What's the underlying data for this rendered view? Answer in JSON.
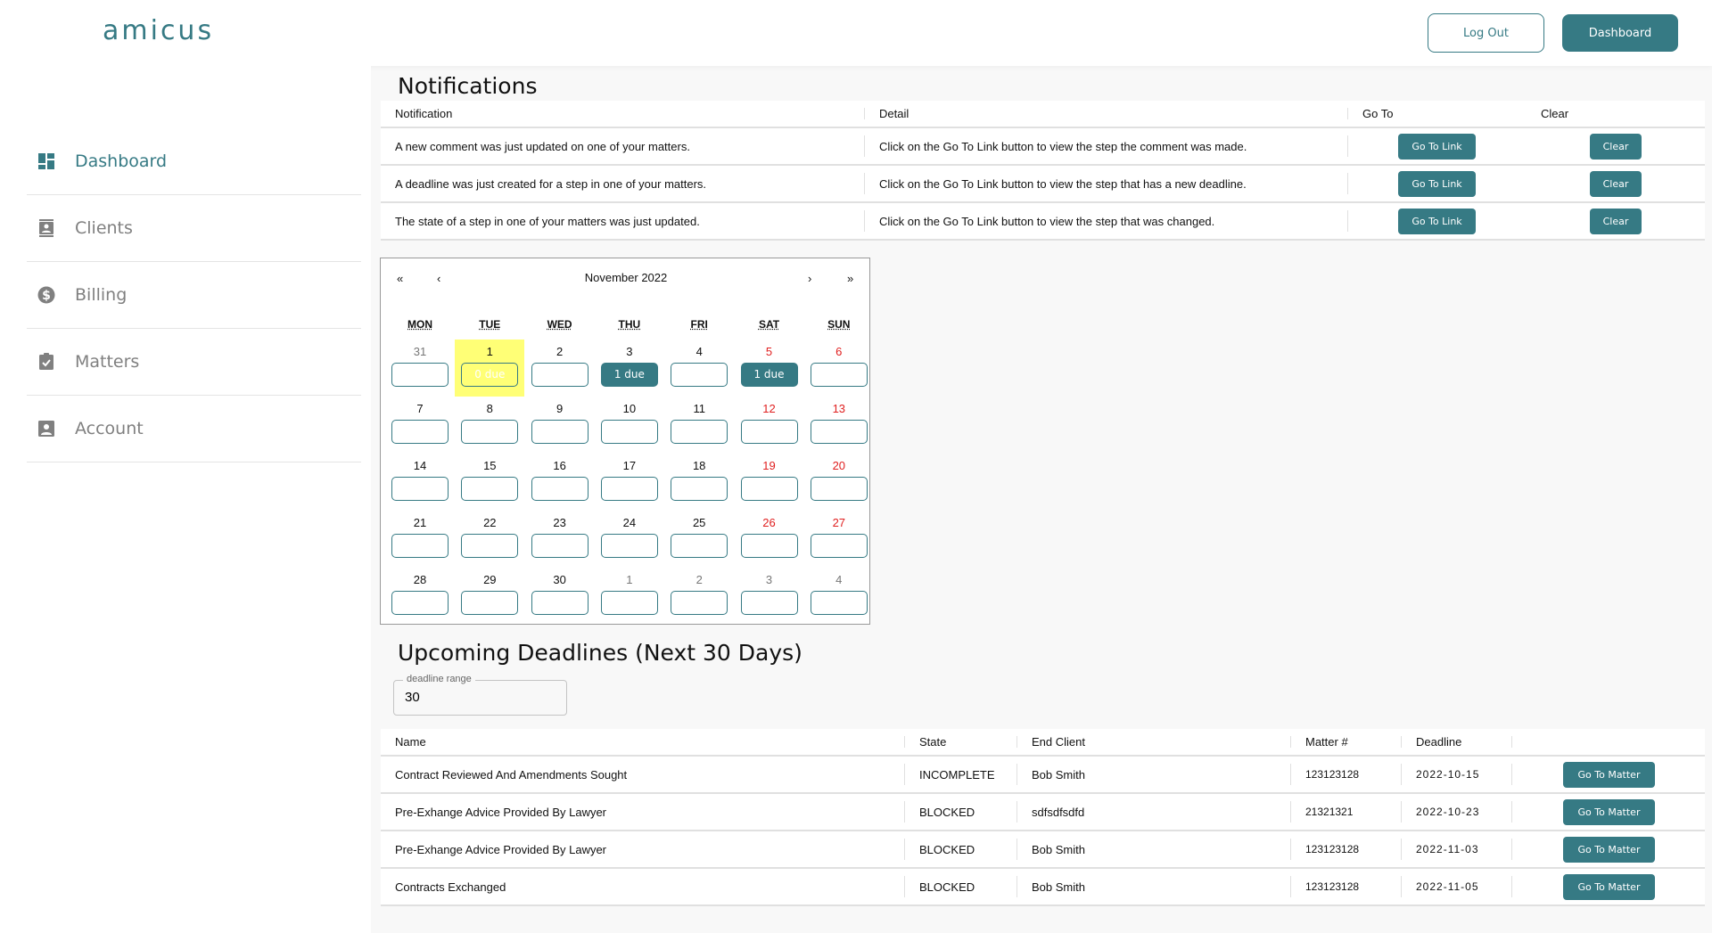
{
  "brand": "amicus",
  "header": {
    "logout": "Log Out",
    "dashboard": "Dashboard"
  },
  "colors": {
    "accent": "#367a84",
    "today": "#ffff76",
    "weekend": "#e02020"
  },
  "sidebar": {
    "items": [
      {
        "label": "Dashboard",
        "icon": "dashboard-icon",
        "active": true
      },
      {
        "label": "Clients",
        "icon": "contacts-icon"
      },
      {
        "label": "Billing",
        "icon": "dollar-icon"
      },
      {
        "label": "Matters",
        "icon": "clipboard-check-icon"
      },
      {
        "label": "Account",
        "icon": "account-box-icon"
      }
    ]
  },
  "notifications": {
    "title": "Notifications",
    "columns": [
      "Notification",
      "Detail",
      "Go To",
      "Clear"
    ],
    "rows": [
      {
        "notification": "A new comment was just updated on one of your matters.",
        "detail": "Click on the Go To Link button to view the step the comment was made.",
        "goto": "Go To Link",
        "clear": "Clear"
      },
      {
        "notification": "A deadline was just created for a step in one of your matters.",
        "detail": "Click on the Go To Link button to view the step that has a new deadline.",
        "goto": "Go To Link",
        "clear": "Clear"
      },
      {
        "notification": "The state of a step in one of your matters was just updated.",
        "detail": "Click on the Go To Link button to view the step that was changed.",
        "goto": "Go To Link",
        "clear": "Clear"
      }
    ]
  },
  "calendar": {
    "title": "November 2022",
    "nav": [
      "«",
      "‹",
      "›",
      "»"
    ],
    "weekdays": [
      "MON",
      "TUE",
      "WED",
      "THU",
      "FRI",
      "SAT",
      "SUN"
    ],
    "weeks": [
      [
        {
          "d": "31",
          "other": true
        },
        {
          "d": "1",
          "today": true,
          "due": "0 due"
        },
        {
          "d": "2"
        },
        {
          "d": "3",
          "due": "1 due",
          "has": true
        },
        {
          "d": "4"
        },
        {
          "d": "5",
          "we": true,
          "due": "1 due",
          "has": true
        },
        {
          "d": "6",
          "we": true
        }
      ],
      [
        {
          "d": "7"
        },
        {
          "d": "8"
        },
        {
          "d": "9"
        },
        {
          "d": "10"
        },
        {
          "d": "11"
        },
        {
          "d": "12",
          "we": true
        },
        {
          "d": "13",
          "we": true
        }
      ],
      [
        {
          "d": "14"
        },
        {
          "d": "15"
        },
        {
          "d": "16"
        },
        {
          "d": "17"
        },
        {
          "d": "18"
        },
        {
          "d": "19",
          "we": true
        },
        {
          "d": "20",
          "we": true
        }
      ],
      [
        {
          "d": "21"
        },
        {
          "d": "22"
        },
        {
          "d": "23"
        },
        {
          "d": "24"
        },
        {
          "d": "25"
        },
        {
          "d": "26",
          "we": true
        },
        {
          "d": "27",
          "we": true
        }
      ],
      [
        {
          "d": "28"
        },
        {
          "d": "29"
        },
        {
          "d": "30"
        },
        {
          "d": "1",
          "other": true
        },
        {
          "d": "2",
          "other": true
        },
        {
          "d": "3",
          "other": true
        },
        {
          "d": "4",
          "other": true
        }
      ]
    ]
  },
  "deadlines": {
    "title": "Upcoming Deadlines (Next 30 Days)",
    "range_label": "deadline range",
    "range_value": "30",
    "columns": [
      "Name",
      "State",
      "End Client",
      "Matter #",
      "Deadline",
      ""
    ],
    "rows": [
      {
        "name": "Contract Reviewed And Amendments Sought",
        "state": "INCOMPLETE",
        "client": "Bob Smith",
        "matter": "123123128",
        "deadline": "2022-10-15",
        "action": "Go To Matter"
      },
      {
        "name": "Pre-Exhange Advice Provided By Lawyer",
        "state": "BLOCKED",
        "client": "sdfsdfsdfd",
        "matter": "21321321",
        "deadline": "2022-10-23",
        "action": "Go To Matter"
      },
      {
        "name": "Pre-Exhange Advice Provided By Lawyer",
        "state": "BLOCKED",
        "client": "Bob Smith",
        "matter": "123123128",
        "deadline": "2022-11-03",
        "action": "Go To Matter"
      },
      {
        "name": "Contracts Exchanged",
        "state": "BLOCKED",
        "client": "Bob Smith",
        "matter": "123123128",
        "deadline": "2022-11-05",
        "action": "Go To Matter"
      }
    ]
  }
}
